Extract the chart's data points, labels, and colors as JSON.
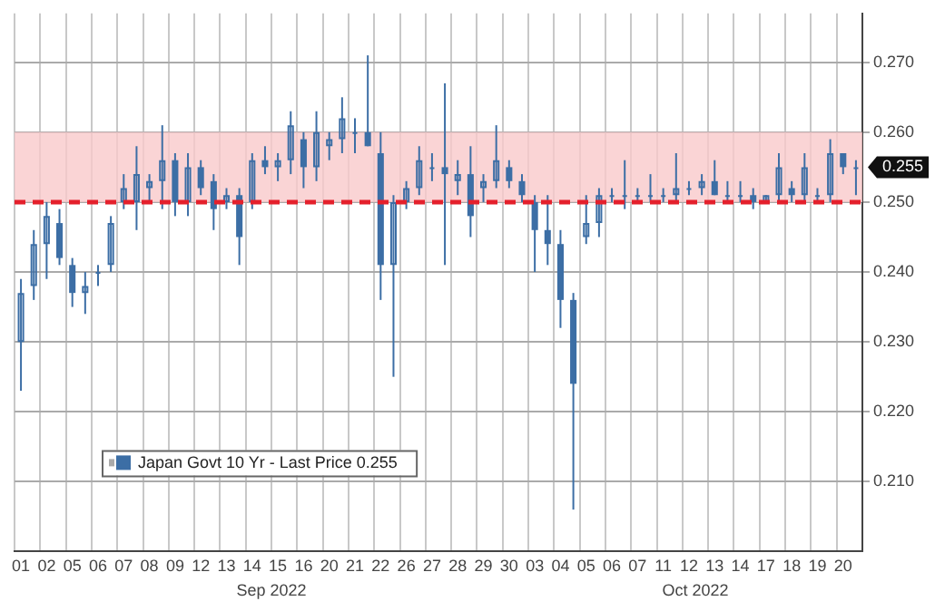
{
  "chart_data": {
    "type": "candlestick",
    "categories": [
      "01",
      null,
      "02",
      null,
      "05",
      null,
      "06",
      null,
      "07",
      null,
      "08",
      null,
      "09",
      null,
      "12",
      null,
      "13",
      null,
      "14",
      null,
      "15",
      null,
      "16",
      null,
      "20",
      null,
      "21",
      null,
      "22",
      null,
      "26",
      null,
      "27",
      null,
      "28",
      null,
      "29",
      null,
      "30",
      null,
      "03",
      null,
      "04",
      null,
      "05",
      null,
      "06",
      null,
      "07",
      null,
      "11",
      null,
      "12",
      null,
      "13",
      null,
      "14",
      null,
      "17",
      null,
      "18",
      null,
      "19",
      null,
      "20",
      null
    ],
    "series": [
      {
        "name": "Japan Govt 10 Yr - Last Price 0.255",
        "color": "#3c6ea5",
        "ohlc": [
          [
            0.23,
            0.239,
            0.223,
            0.237
          ],
          [
            0.238,
            0.246,
            0.236,
            0.244
          ],
          [
            0.244,
            0.25,
            0.239,
            0.248
          ],
          [
            0.247,
            0.249,
            0.241,
            0.242
          ],
          [
            0.241,
            0.242,
            0.235,
            0.237
          ],
          [
            0.237,
            0.24,
            0.234,
            0.238
          ],
          [
            0.24,
            0.241,
            0.238,
            0.24
          ],
          [
            0.241,
            0.248,
            0.24,
            0.247
          ],
          [
            0.25,
            0.254,
            0.249,
            0.252
          ],
          [
            0.25,
            0.258,
            0.246,
            0.254
          ],
          [
            0.252,
            0.254,
            0.25,
            0.253
          ],
          [
            0.253,
            0.261,
            0.249,
            0.256
          ],
          [
            0.256,
            0.257,
            0.248,
            0.25
          ],
          [
            0.25,
            0.257,
            0.248,
            0.255
          ],
          [
            0.255,
            0.256,
            0.251,
            0.252
          ],
          [
            0.253,
            0.254,
            0.246,
            0.249
          ],
          [
            0.25,
            0.252,
            0.249,
            0.251
          ],
          [
            0.251,
            0.252,
            0.241,
            0.245
          ],
          [
            0.25,
            0.257,
            0.249,
            0.256
          ],
          [
            0.256,
            0.258,
            0.254,
            0.255
          ],
          [
            0.255,
            0.257,
            0.253,
            0.256
          ],
          [
            0.256,
            0.263,
            0.254,
            0.261
          ],
          [
            0.259,
            0.26,
            0.252,
            0.255
          ],
          [
            0.255,
            0.263,
            0.253,
            0.26
          ],
          [
            0.258,
            0.26,
            0.256,
            0.259
          ],
          [
            0.259,
            0.265,
            0.257,
            0.262
          ],
          [
            0.26,
            0.262,
            0.257,
            0.26
          ],
          [
            0.26,
            0.271,
            0.258,
            0.258
          ],
          [
            0.257,
            0.26,
            0.236,
            0.241
          ],
          [
            0.241,
            0.251,
            0.225,
            0.25
          ],
          [
            0.25,
            0.253,
            0.249,
            0.252
          ],
          [
            0.252,
            0.258,
            0.251,
            0.256
          ],
          [
            0.255,
            0.257,
            0.253,
            0.255
          ],
          [
            0.255,
            0.267,
            0.241,
            0.254
          ],
          [
            0.253,
            0.256,
            0.251,
            0.254
          ],
          [
            0.254,
            0.258,
            0.245,
            0.248
          ],
          [
            0.252,
            0.254,
            0.25,
            0.253
          ],
          [
            0.253,
            0.261,
            0.252,
            0.256
          ],
          [
            0.255,
            0.256,
            0.252,
            0.253
          ],
          [
            0.253,
            0.254,
            0.25,
            0.251
          ],
          [
            0.25,
            0.251,
            0.24,
            0.246
          ],
          [
            0.246,
            0.251,
            0.241,
            0.244
          ],
          [
            0.244,
            0.246,
            0.232,
            0.236
          ],
          [
            0.236,
            0.237,
            0.206,
            0.224
          ],
          [
            0.245,
            0.251,
            0.244,
            0.247
          ],
          [
            0.247,
            0.252,
            0.245,
            0.251
          ],
          [
            0.251,
            0.252,
            0.25,
            0.251
          ],
          [
            0.251,
            0.256,
            0.249,
            0.251
          ],
          [
            0.251,
            0.252,
            0.25,
            0.251
          ],
          [
            0.251,
            0.254,
            0.25,
            0.251
          ],
          [
            0.251,
            0.252,
            0.25,
            0.251
          ],
          [
            0.251,
            0.257,
            0.25,
            0.252
          ],
          [
            0.252,
            0.253,
            0.251,
            0.252
          ],
          [
            0.252,
            0.254,
            0.251,
            0.253
          ],
          [
            0.253,
            0.256,
            0.251,
            0.251
          ],
          [
            0.251,
            0.253,
            0.25,
            0.251
          ],
          [
            0.251,
            0.253,
            0.25,
            0.251
          ],
          [
            0.251,
            0.252,
            0.249,
            0.25
          ],
          [
            0.25,
            0.251,
            0.25,
            0.251
          ],
          [
            0.251,
            0.257,
            0.25,
            0.255
          ],
          [
            0.252,
            0.253,
            0.25,
            0.251
          ],
          [
            0.251,
            0.257,
            0.25,
            0.255
          ],
          [
            0.251,
            0.252,
            0.25,
            0.251
          ],
          [
            0.251,
            0.259,
            0.25,
            0.257
          ],
          [
            0.257,
            0.257,
            0.254,
            0.255
          ],
          [
            0.255,
            0.256,
            0.251,
            0.255
          ]
        ]
      }
    ],
    "ylim": [
      0.2,
      0.277
    ],
    "yticks": [
      {
        "value": 0.21,
        "label": "0.210"
      },
      {
        "value": 0.22,
        "label": "0.220"
      },
      {
        "value": 0.23,
        "label": "0.230"
      },
      {
        "value": 0.24,
        "label": "0.240"
      },
      {
        "value": 0.25,
        "label": "0.250"
      },
      {
        "value": 0.26,
        "label": "0.260"
      },
      {
        "value": 0.27,
        "label": "0.270"
      }
    ],
    "grid": true,
    "legend": "bottom left",
    "bands": [
      {
        "axis": "y",
        "from": 0.25,
        "to": 0.26,
        "color": "#f9c9cb"
      }
    ],
    "ref_lines": [
      {
        "axis": "y",
        "value": 0.25,
        "color": "#e4202c",
        "line_style": "dashed"
      }
    ],
    "annotations": [
      "0.255",
      "Sep 2022",
      "Oct 2022"
    ]
  }
}
